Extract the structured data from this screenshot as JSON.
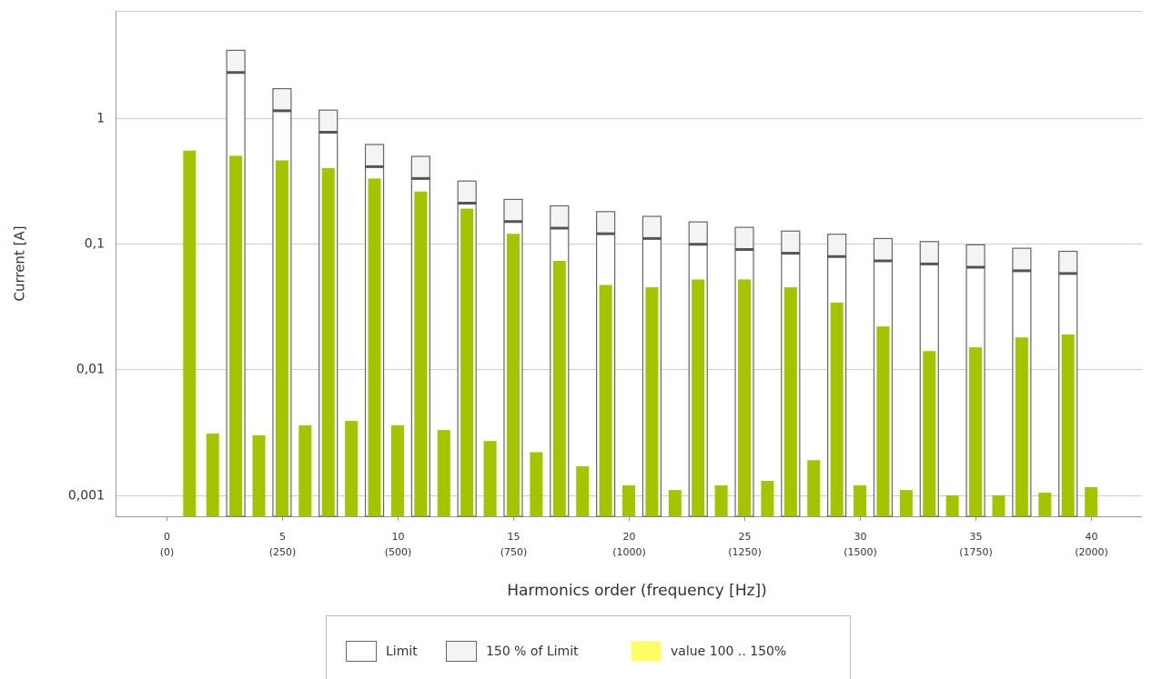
{
  "chart_data": {
    "type": "bar",
    "x_label": "Harmonics order (frequency [Hz])",
    "y_label": "Current [A]",
    "log_y": true,
    "grid": true,
    "legend": "bottom",
    "x": [
      1,
      2,
      3,
      4,
      5,
      6,
      7,
      8,
      9,
      10,
      11,
      12,
      13,
      14,
      15,
      16,
      17,
      18,
      19,
      20,
      21,
      22,
      23,
      24,
      25,
      26,
      27,
      28,
      29,
      30,
      31,
      32,
      33,
      34,
      35,
      36,
      37,
      38,
      39,
      40
    ],
    "xlim": [
      -2.2,
      42.2
    ],
    "xticks": [
      0,
      5,
      10,
      15,
      20,
      25,
      30,
      35,
      40
    ],
    "xtick_frequencies": [
      "(0)",
      "(250)",
      "(500)",
      "(750)",
      "(1000)",
      "(1250)",
      "(1500)",
      "(1750)",
      "(2000)"
    ],
    "ylim": [
      0.00068,
      7.1
    ],
    "yticks": [
      1,
      {
        "value": 0.1,
        "label": "0,1"
      },
      {
        "value": 0.01,
        "label": "0,01"
      },
      {
        "value": 0.001,
        "label": "0,001"
      }
    ],
    "series": [
      {
        "color": "#a4c400",
        "values": [
          0.55,
          0.0031,
          0.5,
          0.003,
          0.46,
          0.0036,
          0.4,
          0.0039,
          0.33,
          0.0036,
          0.26,
          0.0033,
          0.19,
          0.0027,
          0.12,
          0.0022,
          0.073,
          0.0017,
          0.047,
          0.0012,
          0.045,
          0.0011,
          0.052,
          0.0012,
          0.052,
          0.0013,
          0.045,
          0.0019,
          0.034,
          0.0012,
          0.022,
          0.0011,
          0.014,
          0.001,
          0.015,
          0.001,
          0.018,
          0.00105,
          0.019,
          0.00116
        ]
      },
      {
        "name": "Limit",
        "color": "#ffffff",
        "values": [
          null,
          null,
          2.3,
          null,
          1.14,
          null,
          0.77,
          null,
          0.41,
          null,
          0.33,
          null,
          0.21,
          null,
          0.15,
          null,
          0.133,
          null,
          0.12,
          null,
          0.11,
          null,
          0.099,
          null,
          0.09,
          null,
          0.084,
          null,
          0.079,
          null,
          0.073,
          null,
          0.069,
          null,
          0.065,
          null,
          0.061,
          null,
          0.058,
          null
        ]
      },
      {
        "name": "150 % of Limit",
        "color": "#f4f4f4",
        "values": [
          null,
          null,
          3.45,
          null,
          1.71,
          null,
          1.155,
          null,
          0.615,
          null,
          0.495,
          null,
          0.315,
          null,
          0.225,
          null,
          0.2,
          null,
          0.18,
          null,
          0.165,
          null,
          0.149,
          null,
          0.135,
          null,
          0.126,
          null,
          0.119,
          null,
          0.11,
          null,
          0.104,
          null,
          0.098,
          null,
          0.092,
          null,
          0.087,
          null
        ]
      },
      {
        "name": "value 100 .. 150%",
        "color": "#ffff66",
        "values": [
          null,
          null,
          null,
          null,
          null,
          null,
          null,
          null,
          null,
          null,
          null,
          null,
          null,
          null,
          null,
          null,
          null,
          null,
          null,
          null,
          null,
          null,
          null,
          null,
          null,
          null,
          null,
          null,
          null,
          null,
          null,
          null,
          null,
          null,
          null,
          null,
          null,
          null,
          null,
          null
        ]
      }
    ]
  }
}
